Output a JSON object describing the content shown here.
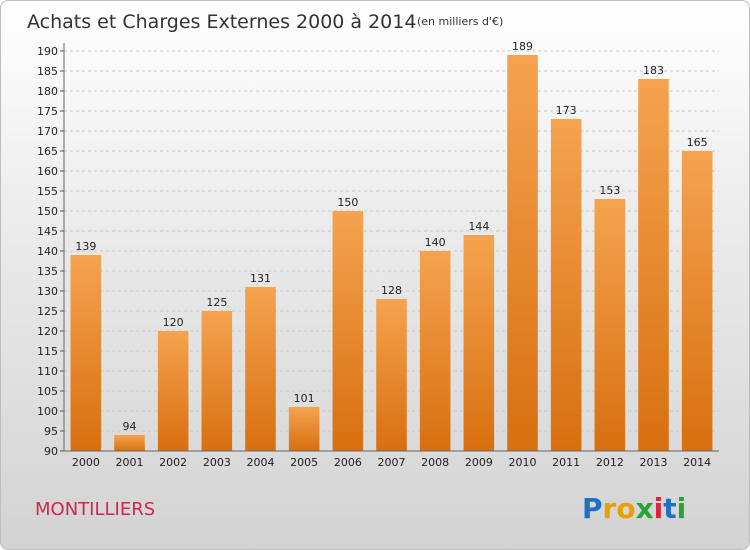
{
  "chart_data": {
    "type": "bar",
    "title": "Achats et Charges Externes 2000 à 2014",
    "subtitle": "(en milliers d'€)",
    "categories": [
      "2000",
      "2001",
      "2002",
      "2003",
      "2004",
      "2005",
      "2006",
      "2007",
      "2008",
      "2009",
      "2010",
      "2011",
      "2012",
      "2013",
      "2014"
    ],
    "values": [
      139,
      94,
      120,
      125,
      131,
      101,
      150,
      128,
      140,
      144,
      189,
      173,
      153,
      183,
      165
    ],
    "ylim": [
      90,
      190
    ],
    "yticks": [
      90,
      95,
      100,
      105,
      110,
      115,
      120,
      125,
      130,
      135,
      140,
      145,
      150,
      155,
      160,
      165,
      170,
      175,
      180,
      185,
      190
    ],
    "grid": "horizontal dashed",
    "bar_color_light": "#f5a34f",
    "bar_color_dark": "#d86f10"
  },
  "location": "MONTILLIERS",
  "brand": {
    "letters": [
      "P",
      "r",
      "o",
      "x",
      "i",
      "t",
      "i"
    ],
    "colors": [
      "#1f6fc4",
      "#e8a000",
      "#e8a000",
      "#27a534",
      "#d7263d",
      "#1f6fc4",
      "#27a534"
    ]
  }
}
